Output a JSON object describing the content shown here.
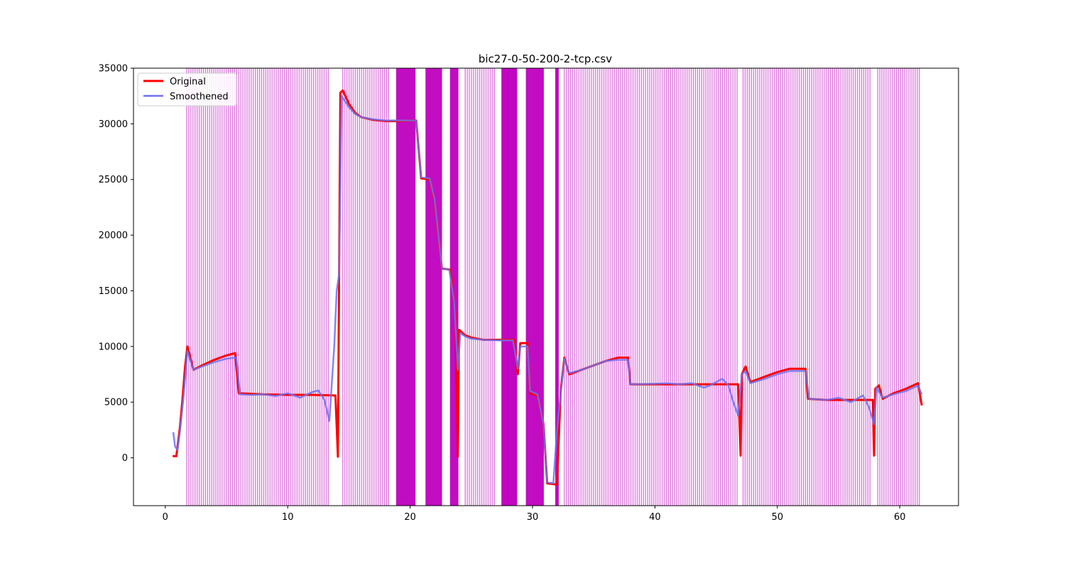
{
  "chart_data": {
    "type": "line",
    "title": "bic27-0-50-200-2-tcp.csv",
    "xlabel": "",
    "ylabel": "",
    "xlim": [
      -2.6,
      64.8
    ],
    "ylim": [
      -4300,
      35000
    ],
    "x_ticks": [
      0,
      10,
      20,
      30,
      40,
      50,
      60
    ],
    "y_ticks": [
      0,
      5000,
      10000,
      15000,
      20000,
      25000,
      30000,
      35000
    ],
    "x_tick_labels": [
      "0",
      "10",
      "20",
      "30",
      "40",
      "50",
      "60"
    ],
    "y_tick_labels": [
      "0",
      "5000",
      "10000",
      "15000",
      "20000",
      "25000",
      "30000",
      "35000"
    ],
    "grid": false,
    "legend": {
      "position": "top-left",
      "entries": [
        {
          "label": "Original",
          "color": "#ff0000"
        },
        {
          "label": "Smoothened",
          "color": "#7070f0"
        }
      ]
    },
    "vline_color": "#bf00bf",
    "vline_regions": [
      {
        "start": 1.75,
        "end": 13.4,
        "spacing": 0.17
      },
      {
        "start": 14.5,
        "end": 18.4,
        "spacing": 0.17
      },
      {
        "start": 18.9,
        "end": 20.4,
        "spacing": 0.06
      },
      {
        "start": 21.3,
        "end": 22.6,
        "spacing": 0.06
      },
      {
        "start": 23.3,
        "end": 23.9,
        "spacing": 0.06
      },
      {
        "start": 24.5,
        "end": 27.0,
        "spacing": 0.17
      },
      {
        "start": 27.5,
        "end": 28.7,
        "spacing": 0.05
      },
      {
        "start": 29.5,
        "end": 30.9,
        "spacing": 0.06
      },
      {
        "start": 31.9,
        "end": 32.1,
        "spacing": 0.05
      },
      {
        "start": 32.6,
        "end": 46.8,
        "spacing": 0.17
      },
      {
        "start": 47.2,
        "end": 57.7,
        "spacing": 0.17
      },
      {
        "start": 58.2,
        "end": 61.6,
        "spacing": 0.17
      }
    ],
    "series": [
      {
        "name": "Original",
        "color": "#ff0000",
        "points": [
          [
            0.6,
            150
          ],
          [
            0.9,
            150
          ],
          [
            1.0,
            1000
          ],
          [
            1.2,
            2800
          ],
          [
            1.4,
            5200
          ],
          [
            1.6,
            8000
          ],
          [
            1.8,
            10000
          ],
          [
            2.0,
            9200
          ],
          [
            2.3,
            7900
          ],
          [
            3.0,
            8300
          ],
          [
            4.0,
            8800
          ],
          [
            5.0,
            9200
          ],
          [
            5.7,
            9400
          ],
          [
            6.0,
            5800
          ],
          [
            7.0,
            5750
          ],
          [
            8.0,
            5700
          ],
          [
            10.0,
            5650
          ],
          [
            12.0,
            5650
          ],
          [
            13.9,
            5600
          ],
          [
            14.1,
            100
          ],
          [
            14.3,
            32800
          ],
          [
            14.5,
            33000
          ],
          [
            15.0,
            31800
          ],
          [
            15.5,
            31000
          ],
          [
            16.0,
            30600
          ],
          [
            17.0,
            30350
          ],
          [
            18.0,
            30250
          ],
          [
            19.0,
            30250
          ],
          [
            20.0,
            30300
          ],
          [
            20.5,
            30300
          ],
          [
            20.9,
            25100
          ],
          [
            21.6,
            25000
          ],
          [
            22.0,
            23000
          ],
          [
            22.6,
            17000
          ],
          [
            23.3,
            16900
          ],
          [
            23.7,
            13000
          ],
          [
            23.9,
            100
          ],
          [
            24.0,
            11500
          ],
          [
            24.5,
            11000
          ],
          [
            25.0,
            10800
          ],
          [
            26.0,
            10600
          ],
          [
            27.0,
            10600
          ],
          [
            28.5,
            10600
          ],
          [
            28.8,
            7500
          ],
          [
            29.0,
            10300
          ],
          [
            29.6,
            10300
          ],
          [
            29.8,
            5800
          ],
          [
            30.4,
            5600
          ],
          [
            30.9,
            3000
          ],
          [
            31.2,
            -2300
          ],
          [
            32.0,
            -2400
          ],
          [
            32.3,
            6000
          ],
          [
            32.6,
            9000
          ],
          [
            33.0,
            7500
          ],
          [
            34.0,
            7900
          ],
          [
            35.0,
            8300
          ],
          [
            36.0,
            8700
          ],
          [
            37.0,
            9000
          ],
          [
            37.8,
            9000
          ],
          [
            38.0,
            6600
          ],
          [
            40.0,
            6600
          ],
          [
            42.0,
            6600
          ],
          [
            44.0,
            6600
          ],
          [
            46.8,
            6600
          ],
          [
            47.0,
            200
          ],
          [
            47.1,
            7500
          ],
          [
            47.4,
            8200
          ],
          [
            47.8,
            6800
          ],
          [
            49.0,
            7300
          ],
          [
            50.0,
            7700
          ],
          [
            51.0,
            8000
          ],
          [
            52.3,
            8000
          ],
          [
            52.5,
            5300
          ],
          [
            54.0,
            5200
          ],
          [
            56.0,
            5200
          ],
          [
            57.8,
            5200
          ],
          [
            57.9,
            200
          ],
          [
            58.0,
            6200
          ],
          [
            58.3,
            6500
          ],
          [
            58.6,
            5300
          ],
          [
            59.5,
            5800
          ],
          [
            60.5,
            6200
          ],
          [
            61.5,
            6700
          ],
          [
            61.8,
            4700
          ]
        ]
      },
      {
        "name": "Smoothened",
        "color": "#7070f0",
        "points": [
          [
            0.65,
            2300
          ],
          [
            0.8,
            1000
          ],
          [
            1.0,
            700
          ],
          [
            1.2,
            2400
          ],
          [
            1.5,
            5600
          ],
          [
            1.8,
            9600
          ],
          [
            2.0,
            8900
          ],
          [
            2.3,
            7900
          ],
          [
            3.0,
            8200
          ],
          [
            4.0,
            8600
          ],
          [
            5.0,
            8900
          ],
          [
            5.8,
            9000
          ],
          [
            6.1,
            5700
          ],
          [
            7.0,
            5650
          ],
          [
            8.0,
            5700
          ],
          [
            9.0,
            5550
          ],
          [
            10.0,
            5800
          ],
          [
            11.0,
            5400
          ],
          [
            12.0,
            5900
          ],
          [
            12.5,
            6050
          ],
          [
            13.0,
            5200
          ],
          [
            13.4,
            3300
          ],
          [
            13.8,
            10000
          ],
          [
            14.0,
            15000
          ],
          [
            14.2,
            16500
          ],
          [
            14.4,
            32500
          ],
          [
            14.7,
            32000
          ],
          [
            15.0,
            31500
          ],
          [
            15.5,
            30900
          ],
          [
            16.0,
            30600
          ],
          [
            17.0,
            30400
          ],
          [
            18.0,
            30300
          ],
          [
            19.0,
            30300
          ],
          [
            20.0,
            30300
          ],
          [
            20.5,
            30300
          ],
          [
            20.9,
            25200
          ],
          [
            21.6,
            25100
          ],
          [
            22.0,
            23200
          ],
          [
            22.6,
            17000
          ],
          [
            23.2,
            16900
          ],
          [
            23.6,
            14000
          ],
          [
            23.9,
            7900
          ],
          [
            24.1,
            11200
          ],
          [
            24.5,
            10900
          ],
          [
            25.0,
            10700
          ],
          [
            26.0,
            10600
          ],
          [
            27.0,
            10550
          ],
          [
            28.4,
            10550
          ],
          [
            28.8,
            8000
          ],
          [
            29.0,
            10000
          ],
          [
            29.6,
            10000
          ],
          [
            29.8,
            6000
          ],
          [
            30.4,
            5700
          ],
          [
            30.9,
            3000
          ],
          [
            31.2,
            -2200
          ],
          [
            31.7,
            -2300
          ],
          [
            32.0,
            2500
          ],
          [
            32.6,
            8900
          ],
          [
            33.0,
            7600
          ],
          [
            34.0,
            7900
          ],
          [
            35.0,
            8300
          ],
          [
            36.0,
            8700
          ],
          [
            37.0,
            8800
          ],
          [
            37.8,
            8800
          ],
          [
            38.0,
            6600
          ],
          [
            40.0,
            6650
          ],
          [
            41.0,
            6700
          ],
          [
            42.0,
            6600
          ],
          [
            43.0,
            6700
          ],
          [
            44.0,
            6300
          ],
          [
            44.5,
            6500
          ],
          [
            45.5,
            7100
          ],
          [
            46.0,
            6500
          ],
          [
            46.4,
            5000
          ],
          [
            46.8,
            3800
          ],
          [
            47.1,
            7500
          ],
          [
            47.4,
            7800
          ],
          [
            47.8,
            6700
          ],
          [
            49.0,
            7100
          ],
          [
            50.0,
            7500
          ],
          [
            51.0,
            7800
          ],
          [
            52.3,
            7800
          ],
          [
            52.6,
            5300
          ],
          [
            54.0,
            5200
          ],
          [
            55.0,
            5400
          ],
          [
            56.0,
            5000
          ],
          [
            57.0,
            5600
          ],
          [
            57.5,
            4500
          ],
          [
            57.9,
            3000
          ],
          [
            58.1,
            6300
          ],
          [
            58.6,
            5400
          ],
          [
            59.5,
            5700
          ],
          [
            60.5,
            6000
          ],
          [
            61.5,
            6500
          ],
          [
            61.8,
            5700
          ]
        ]
      }
    ]
  }
}
